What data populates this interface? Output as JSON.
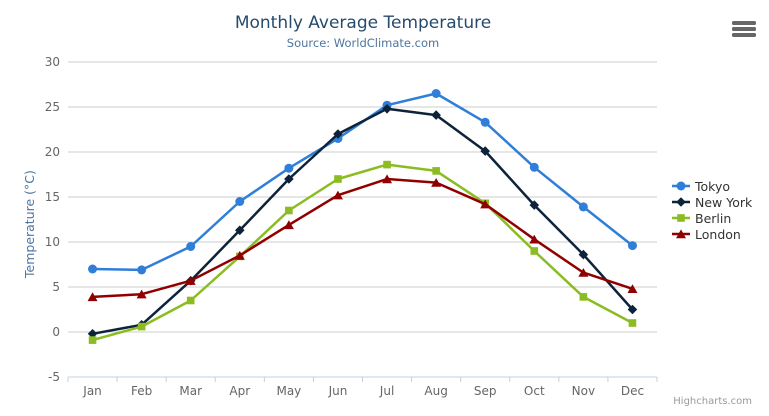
{
  "header": {
    "title": "Monthly Average Temperature",
    "subtitle": "Source: WorldClimate.com"
  },
  "export_menu": {
    "icon": "hamburger-menu-icon"
  },
  "credits": {
    "label": "Highcharts.com"
  },
  "colors": {
    "title": "#274b6d",
    "subtitle": "#4d759e",
    "axis_title": "#4d759e",
    "tick_label": "#666666",
    "grid_line": "#cccccc",
    "axis_line": "#c0d0e0",
    "legend_text": "#333333"
  },
  "chart_data": {
    "type": "line",
    "title": "Monthly Average Temperature",
    "subtitle": "Source: WorldClimate.com",
    "xlabel": "",
    "ylabel": "Temperature (°C)",
    "categories": [
      "Jan",
      "Feb",
      "Mar",
      "Apr",
      "May",
      "Jun",
      "Jul",
      "Aug",
      "Sep",
      "Oct",
      "Nov",
      "Dec"
    ],
    "ylim": [
      -5,
      30
    ],
    "ytick_step": 5,
    "ytick_labels": [
      "-5",
      "0",
      "5",
      "10",
      "15",
      "20",
      "25",
      "30"
    ],
    "grid": true,
    "legend_position": "right",
    "series": [
      {
        "name": "Tokyo",
        "color": "#2f7ed8",
        "marker": "circle",
        "values": [
          7.0,
          6.9,
          9.5,
          14.5,
          18.2,
          21.5,
          25.2,
          26.5,
          23.3,
          18.3,
          13.9,
          9.6
        ]
      },
      {
        "name": "New York",
        "color": "#0d233a",
        "marker": "diamond",
        "values": [
          -0.2,
          0.8,
          5.7,
          11.3,
          17.0,
          22.0,
          24.8,
          24.1,
          20.1,
          14.1,
          8.6,
          2.5
        ]
      },
      {
        "name": "Berlin",
        "color": "#8bbc21",
        "marker": "square",
        "values": [
          -0.9,
          0.6,
          3.5,
          8.4,
          13.5,
          17.0,
          18.6,
          17.9,
          14.3,
          9.0,
          3.9,
          1.0
        ]
      },
      {
        "name": "London",
        "color": "#910000",
        "marker": "triangle",
        "values": [
          3.9,
          4.2,
          5.7,
          8.5,
          11.9,
          15.2,
          17.0,
          16.6,
          14.2,
          10.3,
          6.6,
          4.8
        ]
      }
    ]
  }
}
